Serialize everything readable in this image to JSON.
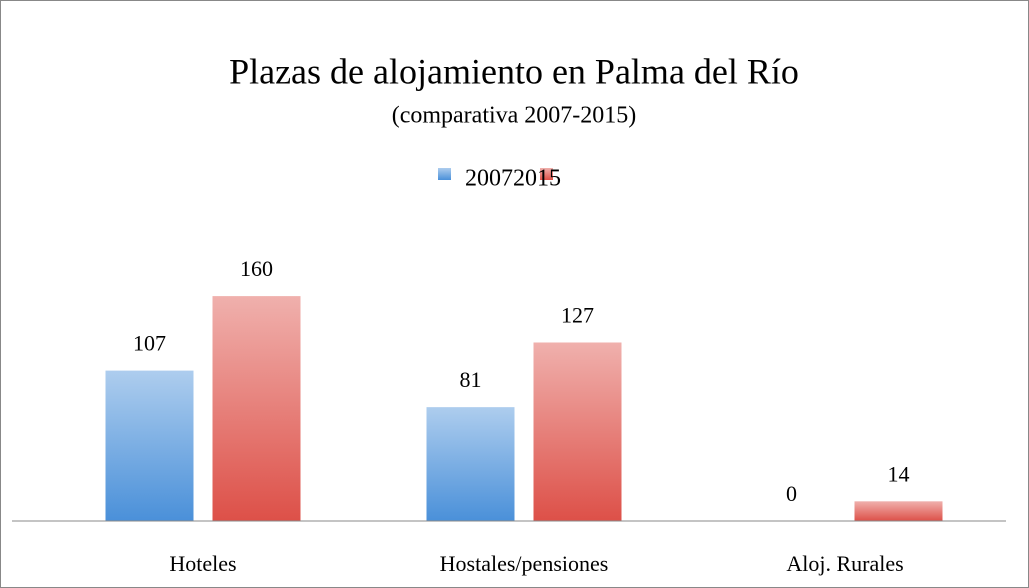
{
  "chart_data": {
    "type": "bar",
    "title": "Plazas de alojamiento en Palma del Río",
    "subtitle": "(comparativa 2007-2015)",
    "categories": [
      "Hoteles",
      "Hostales/pensiones",
      "Aloj. Rurales"
    ],
    "series": [
      {
        "name": "2007",
        "color": "#4a90d9",
        "values": [
          107,
          81,
          0
        ]
      },
      {
        "name": "2015",
        "color": "#dd5048",
        "values": [
          160,
          127,
          14
        ]
      }
    ],
    "ylim": [
      0,
      180
    ]
  }
}
